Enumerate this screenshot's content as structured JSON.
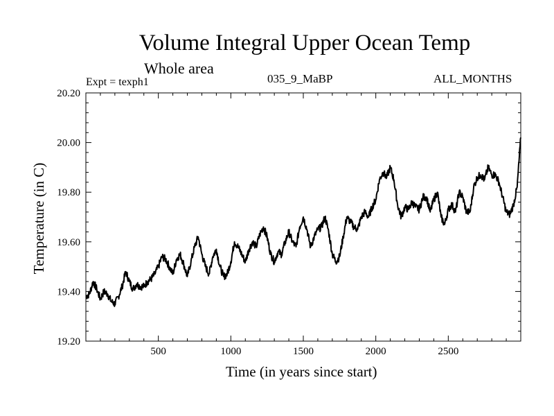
{
  "header": {
    "title": "Volume Integral Upper Ocean Temp",
    "subtitle": "Whole area",
    "expt_label": "Expt = texph1",
    "experiment_name": "035_9_MaBP",
    "months": "ALL_MONTHS"
  },
  "chart_data": {
    "type": "line",
    "xlabel": "Time (in years since start)",
    "ylabel": "Temperature (in C)",
    "xlim": [
      0,
      3000
    ],
    "ylim": [
      19.2,
      20.2
    ],
    "x_ticks": [
      500,
      1000,
      1500,
      2000,
      2500
    ],
    "y_ticks": [
      "19.20",
      "19.40",
      "19.60",
      "19.80",
      "20.00",
      "20.20"
    ],
    "grid": false,
    "line_color": "#000000",
    "series": [
      {
        "name": "",
        "x": [
          0,
          25,
          50,
          75,
          100,
          125,
          150,
          175,
          200,
          225,
          250,
          275,
          300,
          325,
          350,
          375,
          400,
          425,
          450,
          475,
          500,
          525,
          550,
          575,
          600,
          625,
          650,
          675,
          700,
          725,
          750,
          775,
          800,
          825,
          850,
          875,
          900,
          925,
          950,
          975,
          1000,
          1025,
          1050,
          1075,
          1100,
          1125,
          1150,
          1175,
          1200,
          1225,
          1250,
          1275,
          1300,
          1325,
          1350,
          1375,
          1400,
          1425,
          1450,
          1475,
          1500,
          1525,
          1550,
          1575,
          1600,
          1625,
          1650,
          1675,
          1700,
          1725,
          1750,
          1775,
          1800,
          1825,
          1850,
          1875,
          1900,
          1925,
          1950,
          1975,
          2000,
          2025,
          2050,
          2075,
          2100,
          2125,
          2150,
          2175,
          2200,
          2225,
          2250,
          2275,
          2300,
          2325,
          2350,
          2375,
          2400,
          2425,
          2450,
          2475,
          2500,
          2525,
          2550,
          2575,
          2600,
          2625,
          2650,
          2675,
          2700,
          2725,
          2750,
          2775,
          2800,
          2825,
          2850,
          2875,
          2900,
          2925,
          2950,
          2975,
          3000
        ],
        "values": [
          19.38,
          19.39,
          19.44,
          19.41,
          19.37,
          19.4,
          19.39,
          19.36,
          19.35,
          19.38,
          19.42,
          19.48,
          19.44,
          19.41,
          19.43,
          19.42,
          19.42,
          19.44,
          19.45,
          19.47,
          19.5,
          19.54,
          19.53,
          19.5,
          19.47,
          19.53,
          19.55,
          19.51,
          19.46,
          19.52,
          19.58,
          19.62,
          19.55,
          19.5,
          19.47,
          19.54,
          19.57,
          19.5,
          19.46,
          19.47,
          19.52,
          19.6,
          19.58,
          19.55,
          19.52,
          19.57,
          19.6,
          19.58,
          19.63,
          19.66,
          19.62,
          19.55,
          19.52,
          19.56,
          19.55,
          19.6,
          19.64,
          19.6,
          19.58,
          19.66,
          19.7,
          19.65,
          19.58,
          19.62,
          19.65,
          19.66,
          19.7,
          19.64,
          19.55,
          19.52,
          19.54,
          19.62,
          19.7,
          19.68,
          19.66,
          19.65,
          19.7,
          19.72,
          19.7,
          19.74,
          19.77,
          19.85,
          19.88,
          19.86,
          19.9,
          19.85,
          19.75,
          19.7,
          19.74,
          19.73,
          19.76,
          19.74,
          19.73,
          19.78,
          19.78,
          19.72,
          19.77,
          19.8,
          19.7,
          19.67,
          19.73,
          19.75,
          19.72,
          19.8,
          19.78,
          19.72,
          19.72,
          19.82,
          19.86,
          19.87,
          19.85,
          19.9,
          19.87,
          19.87,
          19.84,
          19.78,
          19.72,
          19.71,
          19.75,
          19.82,
          20.02
        ]
      }
    ]
  }
}
